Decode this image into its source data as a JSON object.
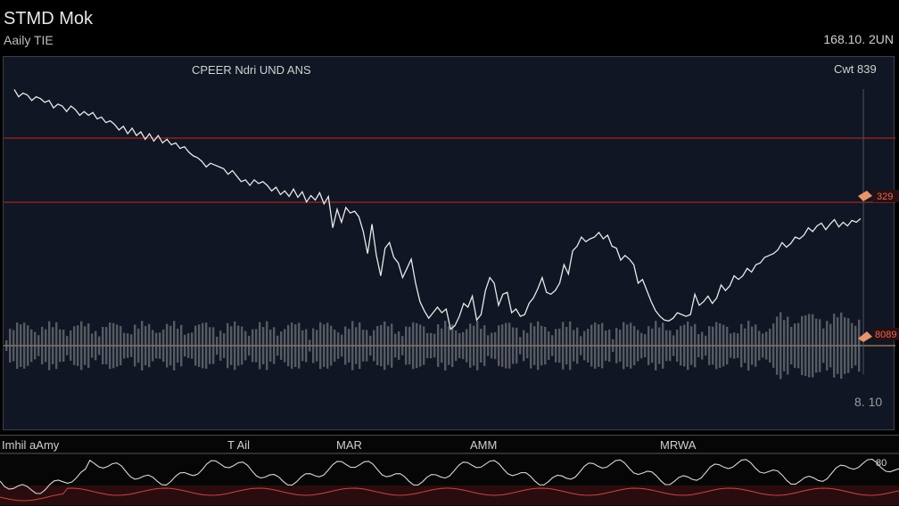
{
  "header": {
    "title": "STMD Mok",
    "subtitle": "Aaily TIE",
    "timestamp": "168.10. 2UN"
  },
  "main_chart": {
    "legend_label": "CPEER Ndri UND ANS",
    "top_right_label": "Cwt 839",
    "level_label_1": "329",
    "level_label_2": "8089",
    "bottom_right_label": "8. 10"
  },
  "sub_panel": {
    "labels": [
      "Imhil aAmy",
      "T Ail",
      "MAR",
      "AMM",
      "MRWA"
    ],
    "right_label": "80"
  },
  "colors": {
    "price_line": "#e8e8e8",
    "level_line": "#a3251f",
    "volume": "#7a7f86",
    "marker": "#e8956a",
    "panel_bg": "#101623"
  },
  "chart_data": {
    "type": "line",
    "title": "STMD Mok",
    "series": [
      {
        "values": [
          190,
          186,
          188,
          182,
          186,
          181,
          189,
          184,
          178,
          185,
          182,
          176,
          180,
          172,
          168,
          170,
          163,
          159,
          164,
          156,
          152,
          150,
          148,
          142,
          140,
          132,
          136,
          128,
          124,
          128,
          117,
          112,
          118,
          104,
          98,
          106,
          100,
          96,
          108,
          86,
          84,
          86,
          88,
          82,
          79,
          80,
          84,
          90,
          100,
          112,
          124,
          120,
          140,
          146,
          150,
          145,
          158,
          160,
          172,
          168,
          175,
          170,
          168,
          165,
          170,
          160,
          155,
          130,
          140,
          120,
          112,
          108,
          110,
          126,
          114,
          104,
          98,
          86,
          84,
          92,
          88,
          110,
          108,
          96,
          120,
          126,
          112,
          86,
          80,
          106,
          94,
          98,
          84,
          74,
          70,
          92,
          88,
          94,
          88,
          82,
          90,
          100,
          120,
          146,
          136,
          126,
          142,
          148,
          164,
          158,
          128,
          150,
          184,
          152,
          176,
          192,
          198,
          196,
          202,
          186,
          200,
          180,
          214,
          206,
          218,
          210,
          215,
          208,
          219,
          213,
          222,
          214,
          220,
          216,
          224,
          220,
          226,
          230,
          228,
          232,
          226,
          232,
          230,
          236,
          242,
          238,
          244,
          246,
          248,
          250,
          246,
          252,
          256,
          258,
          262,
          268,
          266,
          272,
          270,
          276,
          272,
          280,
          274,
          282,
          276,
          284,
          280,
          288,
          282,
          290,
          286,
          292,
          296,
          294,
          300,
          298,
          305,
          302,
          306,
          302,
          308,
          312,
          306,
          312,
          314,
          310,
          318,
          316,
          320,
          322,
          318,
          324,
          326,
          322,
          330
        ]
      }
    ],
    "ylim": [
      60,
      340
    ],
    "grid": false,
    "legend": "top-left"
  }
}
